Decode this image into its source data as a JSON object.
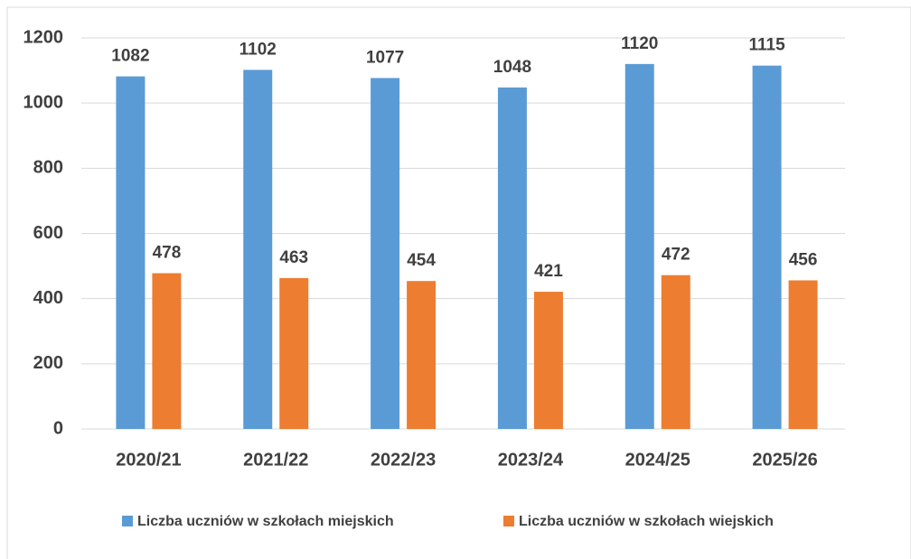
{
  "chart_data": {
    "type": "bar",
    "categories": [
      "2020/21",
      "2021/22",
      "2022/23",
      "2023/24",
      "2024/25",
      "2025/26"
    ],
    "series": [
      {
        "name": "Liczba uczniów w szkołach miejskich",
        "color": "#5b9bd5",
        "values": [
          1082,
          1102,
          1077,
          1048,
          1120,
          1115
        ]
      },
      {
        "name": "Liczba uczniów w szkołach wiejskich",
        "color": "#ed7d31",
        "values": [
          478,
          463,
          454,
          421,
          472,
          456
        ]
      }
    ],
    "ylim": [
      0,
      1200
    ],
    "yticks": [
      0,
      200,
      400,
      600,
      800,
      1000,
      1200
    ],
    "grid": true,
    "legend": "bottom"
  }
}
